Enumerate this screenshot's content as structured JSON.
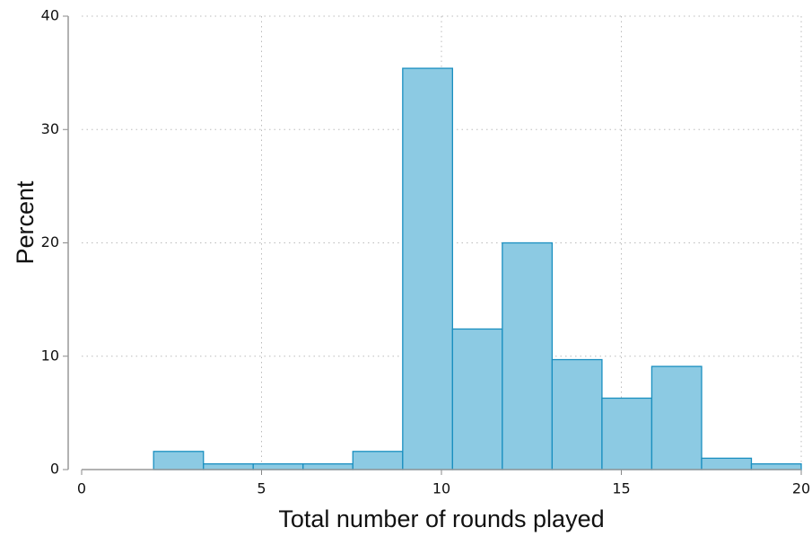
{
  "chart_data": {
    "type": "histogram",
    "x_label": "Total number of rounds played",
    "y_label": "Percent",
    "bins": [
      2,
      3.385,
      4.769,
      6.154,
      7.538,
      8.923,
      10.308,
      11.692,
      13.077,
      14.462,
      15.846,
      17.231,
      18.615,
      20
    ],
    "values": [
      1.6,
      0.5,
      0.5,
      0.5,
      1.6,
      35.4,
      12.4,
      20.0,
      9.7,
      6.3,
      9.1,
      1.0,
      0.5
    ],
    "color": "#8ccae3",
    "edge_color": "#1a8fc0",
    "xlim": [
      0,
      20
    ],
    "ylim": [
      0,
      40
    ],
    "xticks": [
      0,
      5,
      10,
      15,
      20
    ],
    "yticks": [
      0,
      10,
      20,
      30,
      40
    ],
    "grid": true
  }
}
